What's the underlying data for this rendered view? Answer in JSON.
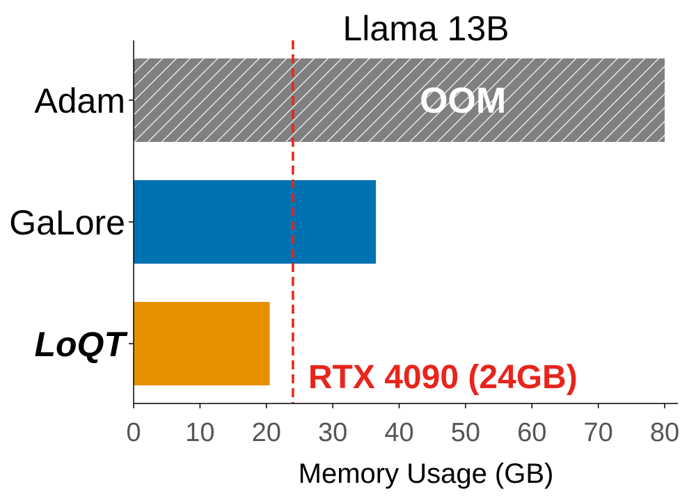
{
  "chart_data": {
    "type": "bar",
    "orientation": "horizontal",
    "title": "Llama 13B",
    "xlabel": "Memory Usage (GB)",
    "ylabel": "",
    "xlim": [
      0,
      82
    ],
    "xticks": [
      0,
      10,
      20,
      30,
      40,
      50,
      60,
      70,
      80
    ],
    "grid": false,
    "categories": [
      "Adam",
      "GaLore",
      "LoQT"
    ],
    "values": [
      80,
      36.5,
      20.5
    ],
    "bar_colors": [
      "#808080",
      "#0072B2",
      "#E69000"
    ],
    "bar_annotations": [
      "OOM",
      "",
      ""
    ],
    "hatched": [
      true,
      false,
      false
    ],
    "emphasized": [
      false,
      false,
      true
    ],
    "reference_line": {
      "value": 24,
      "label": "RTX 4090 (24GB)",
      "color": "#E8251C",
      "style": "dashed"
    }
  }
}
